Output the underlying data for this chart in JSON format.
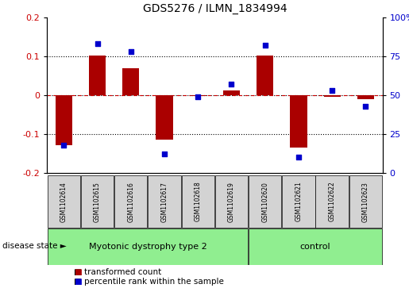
{
  "title": "GDS5276 / ILMN_1834994",
  "samples": [
    "GSM1102614",
    "GSM1102615",
    "GSM1102616",
    "GSM1102617",
    "GSM1102618",
    "GSM1102619",
    "GSM1102620",
    "GSM1102621",
    "GSM1102622",
    "GSM1102623"
  ],
  "transformed_count": [
    -0.13,
    0.102,
    0.068,
    -0.115,
    -0.002,
    0.012,
    0.102,
    -0.135,
    -0.005,
    -0.01
  ],
  "percentile_rank": [
    18,
    83,
    78,
    12,
    49,
    57,
    82,
    10,
    53,
    43
  ],
  "bar_color": "#aa0000",
  "dot_color": "#0000cc",
  "ylim_left": [
    -0.2,
    0.2
  ],
  "ylim_right": [
    0,
    100
  ],
  "yticks_left": [
    -0.2,
    -0.1,
    0.0,
    0.1,
    0.2
  ],
  "yticks_right": [
    0,
    25,
    50,
    75,
    100
  ],
  "dotted_lines": [
    -0.1,
    0.0,
    0.1
  ],
  "legend_items": [
    "transformed count",
    "percentile rank within the sample"
  ],
  "disease_state_label": "disease state",
  "group1_label": "Myotonic dystrophy type 2",
  "group2_label": "control",
  "group1_count": 6,
  "group2_count": 4,
  "tick_color_left": "#cc0000",
  "tick_color_right": "#0000cc",
  "bg_color": "#ffffff",
  "bar_width": 0.5,
  "green_color": "#90ee90",
  "gray_color": "#d3d3d3",
  "title_fontsize": 10,
  "tick_fontsize": 8,
  "sample_fontsize": 5.5,
  "group_fontsize": 8,
  "legend_fontsize": 7.5,
  "disease_fontsize": 7.5
}
